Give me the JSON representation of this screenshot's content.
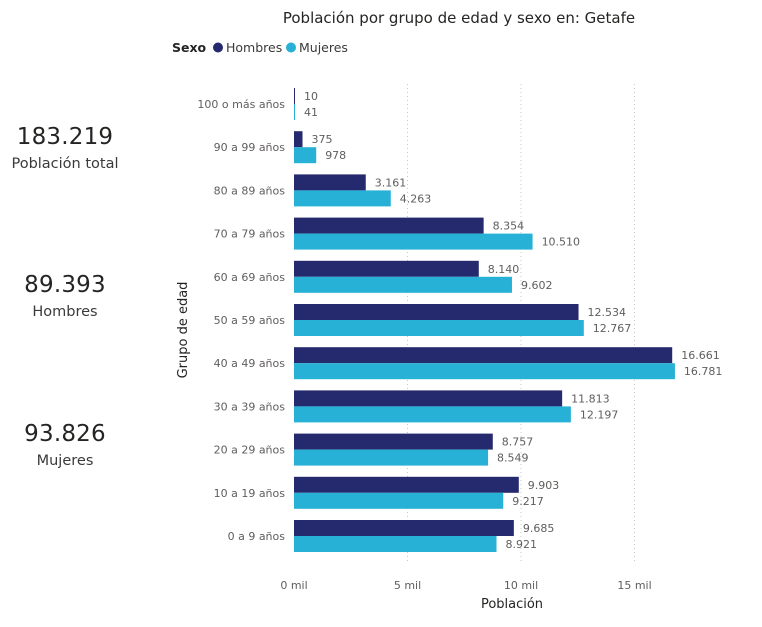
{
  "kpis": [
    {
      "value": "183.219",
      "label": "Población total"
    },
    {
      "value": "89.393",
      "label": "Hombres"
    },
    {
      "value": "93.826",
      "label": "Mujeres"
    }
  ],
  "legend": {
    "title": "Sexo"
  },
  "colors": {
    "hombres": "#252a6e",
    "mujeres": "#27b1d6"
  },
  "chart_data": {
    "type": "bar",
    "orientation": "horizontal",
    "title": "Población por grupo de edad y sexo en: Getafe",
    "xlabel": "Población",
    "ylabel": "Grupo de edad",
    "xlim": [
      0,
      17000
    ],
    "xticks": [
      0,
      5000,
      10000,
      15000
    ],
    "xtick_labels": [
      "0 mil",
      "5 mil",
      "10 mil",
      "15 mil"
    ],
    "grid": "vertical dotted",
    "legend_position": "top-left",
    "categories": [
      "100 o más años",
      "90 a 99 años",
      "80 a 89 años",
      "70 a 79 años",
      "60 a 69 años",
      "50 a 59 años",
      "40 a 49 años",
      "30 a 39 años",
      "20 a 29 años",
      "10 a 19 años",
      "0 a 9 años"
    ],
    "series": [
      {
        "name": "Hombres",
        "values": [
          10,
          375,
          3161,
          8354,
          8140,
          12534,
          16661,
          11813,
          8757,
          9903,
          9685
        ],
        "labels": [
          "10",
          "375",
          "3.161",
          "8.354",
          "8.140",
          "12.534",
          "16.661",
          "11.813",
          "8.757",
          "9.903",
          "9.685"
        ]
      },
      {
        "name": "Mujeres",
        "values": [
          41,
          978,
          4263,
          10510,
          9602,
          12767,
          16781,
          12197,
          8549,
          9217,
          8921
        ],
        "labels": [
          "41",
          "978",
          "4.263",
          "10.510",
          "9.602",
          "12.767",
          "16.781",
          "12.197",
          "8.549",
          "9.217",
          "8.921"
        ]
      }
    ]
  }
}
